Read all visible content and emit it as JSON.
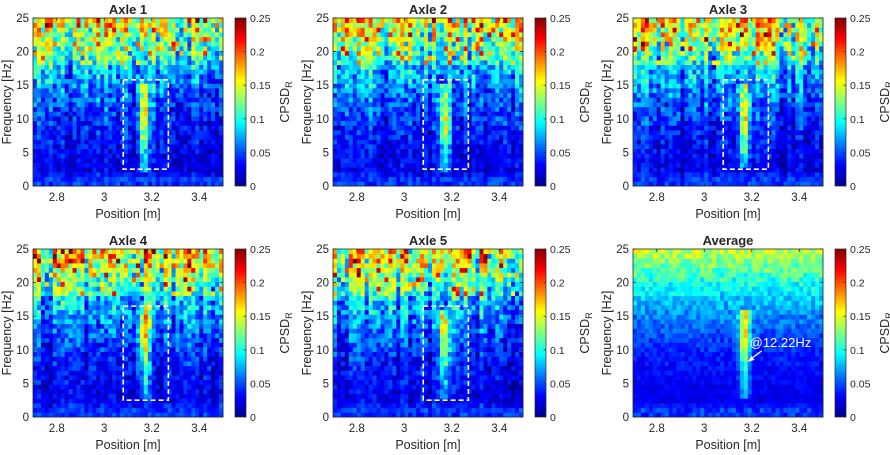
{
  "figure": {
    "colormap": "jet",
    "color_limits": [
      0,
      0.25
    ]
  },
  "chart_data": [
    {
      "type": "heatmap",
      "title": "Axle 1",
      "xlabel": "Position [m]",
      "ylabel": "Frequency [Hz]",
      "colorbar_label": "CPSD",
      "colorbar_label_subscript": "R",
      "xlim": [
        2.7,
        3.5
      ],
      "ylim": [
        0,
        25
      ],
      "xticks": [
        2.8,
        3,
        3.2,
        3.4
      ],
      "xtick_labels": [
        "2.8",
        "3",
        "3.2",
        "3.4"
      ],
      "yticks": [
        0,
        5,
        10,
        15,
        20,
        25
      ],
      "ytick_labels": [
        "0",
        "5",
        "10",
        "15",
        "20",
        "25"
      ],
      "colorbar_ticks": [
        "0",
        "0.05",
        "0.1",
        "0.15",
        "0.2",
        "0.25"
      ],
      "grid": false,
      "highlight_box": {
        "x": [
          3.08,
          3.27
        ],
        "y": [
          2.5,
          15.8
        ]
      },
      "ridge": {
        "x": 3.17,
        "peak_frequency": 10,
        "band": [
          3,
          13
        ]
      }
    },
    {
      "type": "heatmap",
      "title": "Axle 2",
      "xlabel": "Position [m]",
      "ylabel": "Frequency [Hz]",
      "colorbar_label": "CPSD",
      "colorbar_label_subscript": "R",
      "xlim": [
        2.7,
        3.5
      ],
      "ylim": [
        0,
        25
      ],
      "xticks": [
        2.8,
        3,
        3.2,
        3.4
      ],
      "xtick_labels": [
        "2.8",
        "3",
        "3.2",
        "3.4"
      ],
      "yticks": [
        0,
        5,
        10,
        15,
        20,
        25
      ],
      "ytick_labels": [
        "0",
        "5",
        "10",
        "15",
        "20",
        "25"
      ],
      "colorbar_ticks": [
        "0",
        "0.05",
        "0.1",
        "0.15",
        "0.2",
        "0.25"
      ],
      "grid": false,
      "highlight_box": {
        "x": [
          3.08,
          3.27
        ],
        "y": [
          2.5,
          15.8
        ]
      },
      "ridge": {
        "x": 3.17,
        "peak_frequency": 10,
        "band": [
          3,
          13
        ]
      }
    },
    {
      "type": "heatmap",
      "title": "Axle 3",
      "xlabel": "Position [m]",
      "ylabel": "Frequency [Hz]",
      "colorbar_label": "CPSD",
      "colorbar_label_subscript": "R",
      "xlim": [
        2.7,
        3.5
      ],
      "ylim": [
        0,
        25
      ],
      "xticks": [
        2.8,
        3,
        3.2,
        3.4
      ],
      "xtick_labels": [
        "2.8",
        "3",
        "3.2",
        "3.4"
      ],
      "yticks": [
        0,
        5,
        10,
        15,
        20,
        25
      ],
      "ytick_labels": [
        "0",
        "5",
        "10",
        "15",
        "20",
        "25"
      ],
      "colorbar_ticks": [
        "0",
        "0.05",
        "0.1",
        "0.15",
        "0.2",
        "0.25"
      ],
      "grid": false,
      "highlight_box": {
        "x": [
          3.08,
          3.27
        ],
        "y": [
          2.5,
          15.8
        ]
      },
      "ridge": {
        "x": 3.17,
        "peak_frequency": 10,
        "band": [
          4,
          13
        ]
      }
    },
    {
      "type": "heatmap",
      "title": "Axle 4",
      "xlabel": "Position [m]",
      "ylabel": "Frequency [Hz]",
      "colorbar_label": "CPSD",
      "colorbar_label_subscript": "R",
      "xlim": [
        2.7,
        3.5
      ],
      "ylim": [
        0,
        25
      ],
      "xticks": [
        2.8,
        3,
        3.2,
        3.4
      ],
      "xtick_labels": [
        "2.8",
        "3",
        "3.2",
        "3.4"
      ],
      "yticks": [
        0,
        5,
        10,
        15,
        20,
        25
      ],
      "ytick_labels": [
        "0",
        "5",
        "10",
        "15",
        "20",
        "25"
      ],
      "colorbar_ticks": [
        "0",
        "0.05",
        "0.1",
        "0.15",
        "0.2",
        "0.25"
      ],
      "grid": false,
      "highlight_box": {
        "x": [
          3.08,
          3.27
        ],
        "y": [
          2.5,
          16.5
        ]
      },
      "ridge": {
        "x": 3.17,
        "peak_frequency": 13,
        "band": [
          4,
          15
        ]
      }
    },
    {
      "type": "heatmap",
      "title": "Axle 5",
      "xlabel": "Position [m]",
      "ylabel": "Frequency [Hz]",
      "colorbar_label": "CPSD",
      "colorbar_label_subscript": "R",
      "xlim": [
        2.7,
        3.5
      ],
      "ylim": [
        0,
        25
      ],
      "xticks": [
        2.8,
        3,
        3.2,
        3.4
      ],
      "xtick_labels": [
        "2.8",
        "3",
        "3.2",
        "3.4"
      ],
      "yticks": [
        0,
        5,
        10,
        15,
        20,
        25
      ],
      "ytick_labels": [
        "0",
        "5",
        "10",
        "15",
        "20",
        "25"
      ],
      "colorbar_ticks": [
        "0",
        "0.05",
        "0.1",
        "0.15",
        "0.2",
        "0.25"
      ],
      "grid": false,
      "highlight_box": {
        "x": [
          3.08,
          3.27
        ],
        "y": [
          2.5,
          16.5
        ]
      },
      "ridge": {
        "x": 3.17,
        "peak_frequency": 12,
        "band": [
          4,
          14
        ]
      }
    },
    {
      "type": "heatmap",
      "title": "Average",
      "xlabel": "Position [m]",
      "ylabel": "Frequency [Hz]",
      "colorbar_label": "CPSD",
      "colorbar_label_subscript": "R",
      "xlim": [
        2.7,
        3.5
      ],
      "ylim": [
        0,
        25
      ],
      "xticks": [
        2.8,
        3,
        3.2,
        3.4
      ],
      "xtick_labels": [
        "2.8",
        "3",
        "3.2",
        "3.4"
      ],
      "yticks": [
        0,
        5,
        10,
        15,
        20,
        25
      ],
      "ytick_labels": [
        "0",
        "5",
        "10",
        "15",
        "20",
        "25"
      ],
      "colorbar_ticks": [
        "0",
        "0.05",
        "0.1",
        "0.15",
        "0.2",
        "0.25"
      ],
      "grid": false,
      "ridge": {
        "x": 3.17,
        "peak_frequency": 12.22,
        "band": [
          4,
          14
        ]
      },
      "annotation": {
        "text": "@12.22Hz",
        "x": 3.17,
        "y": 12.22,
        "color": "#ffffff"
      }
    }
  ]
}
